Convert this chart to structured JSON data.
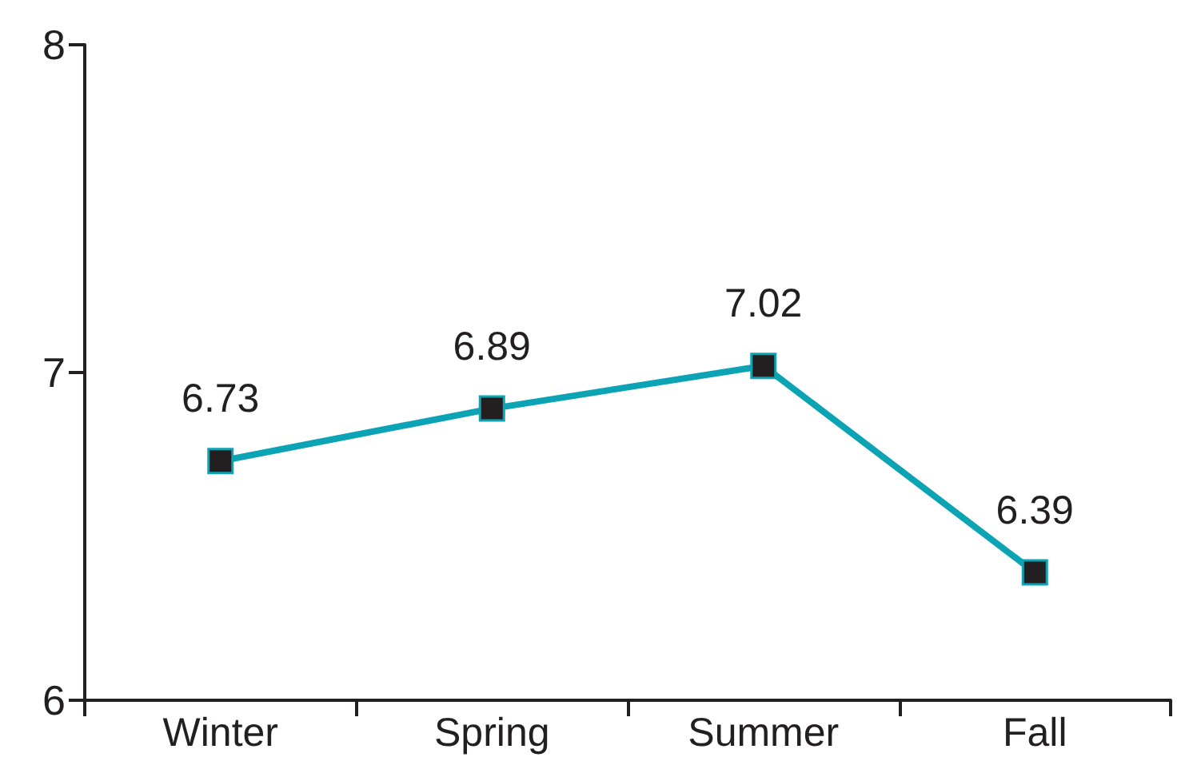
{
  "chart_data": {
    "type": "line",
    "categories": [
      "Winter",
      "Spring",
      "Summer",
      "Fall"
    ],
    "series": [
      {
        "color": "#0ca4b4",
        "values": [
          6.73,
          6.89,
          7.02,
          6.39
        ]
      }
    ],
    "ylim": [
      6,
      8
    ],
    "yticks": [
      6,
      7,
      8
    ],
    "grid": false,
    "marker": "square",
    "line_style": "solid",
    "data_labels": true
  }
}
